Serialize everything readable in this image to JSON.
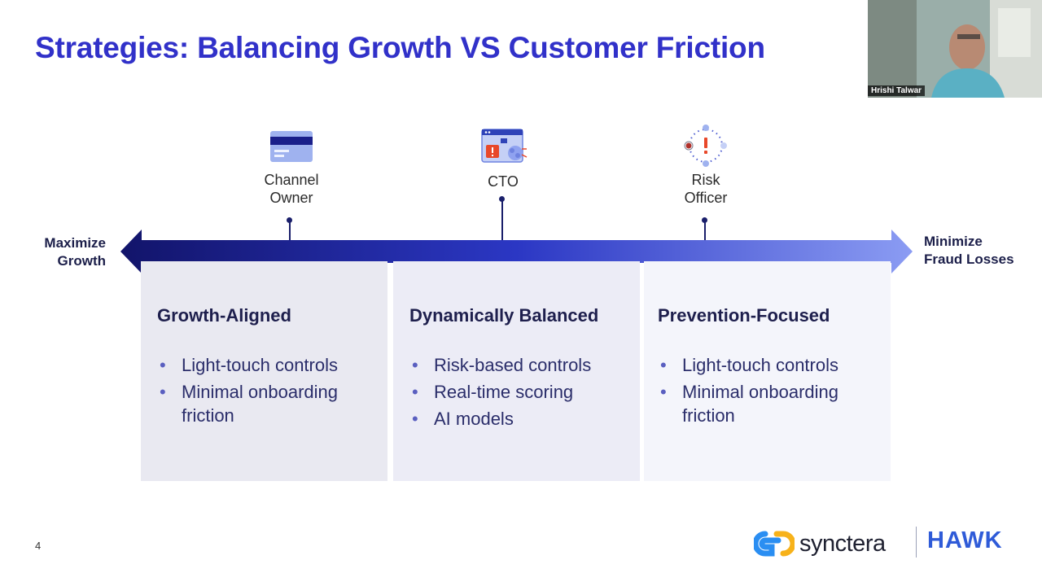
{
  "slide": {
    "title": "Strategies: Balancing Growth VS Customer Friction",
    "page_number": "4",
    "axis": {
      "left_label": [
        "Maximize",
        "Growth"
      ],
      "right_label": [
        "Minimize",
        "Fraud Losses"
      ]
    },
    "roles": [
      {
        "label": [
          "Channel",
          "Owner"
        ],
        "icon": "credit-card-icon"
      },
      {
        "label": [
          "CTO"
        ],
        "icon": "dashboard-alert-icon"
      },
      {
        "label": [
          "Risk",
          "Officer"
        ],
        "icon": "risk-alert-icon"
      }
    ],
    "panels": [
      {
        "heading": "Growth-Aligned",
        "bullets": [
          "Light-touch controls",
          "Minimal onboarding friction"
        ]
      },
      {
        "heading": "Dynamically Balanced",
        "bullets": [
          "Risk-based controls",
          "Real-time scoring",
          "AI models"
        ]
      },
      {
        "heading": "Prevention-Focused",
        "bullets": [
          "Light-touch controls",
          "Minimal onboarding friction"
        ]
      }
    ],
    "logos": {
      "primary": "synctera",
      "secondary": "HAWK"
    },
    "colors": {
      "title": "#3131c9",
      "arrow_dark": "#12146a",
      "arrow_light": "#8b9cf3"
    }
  },
  "video": {
    "participant_name": "Hrishi Talwar"
  }
}
